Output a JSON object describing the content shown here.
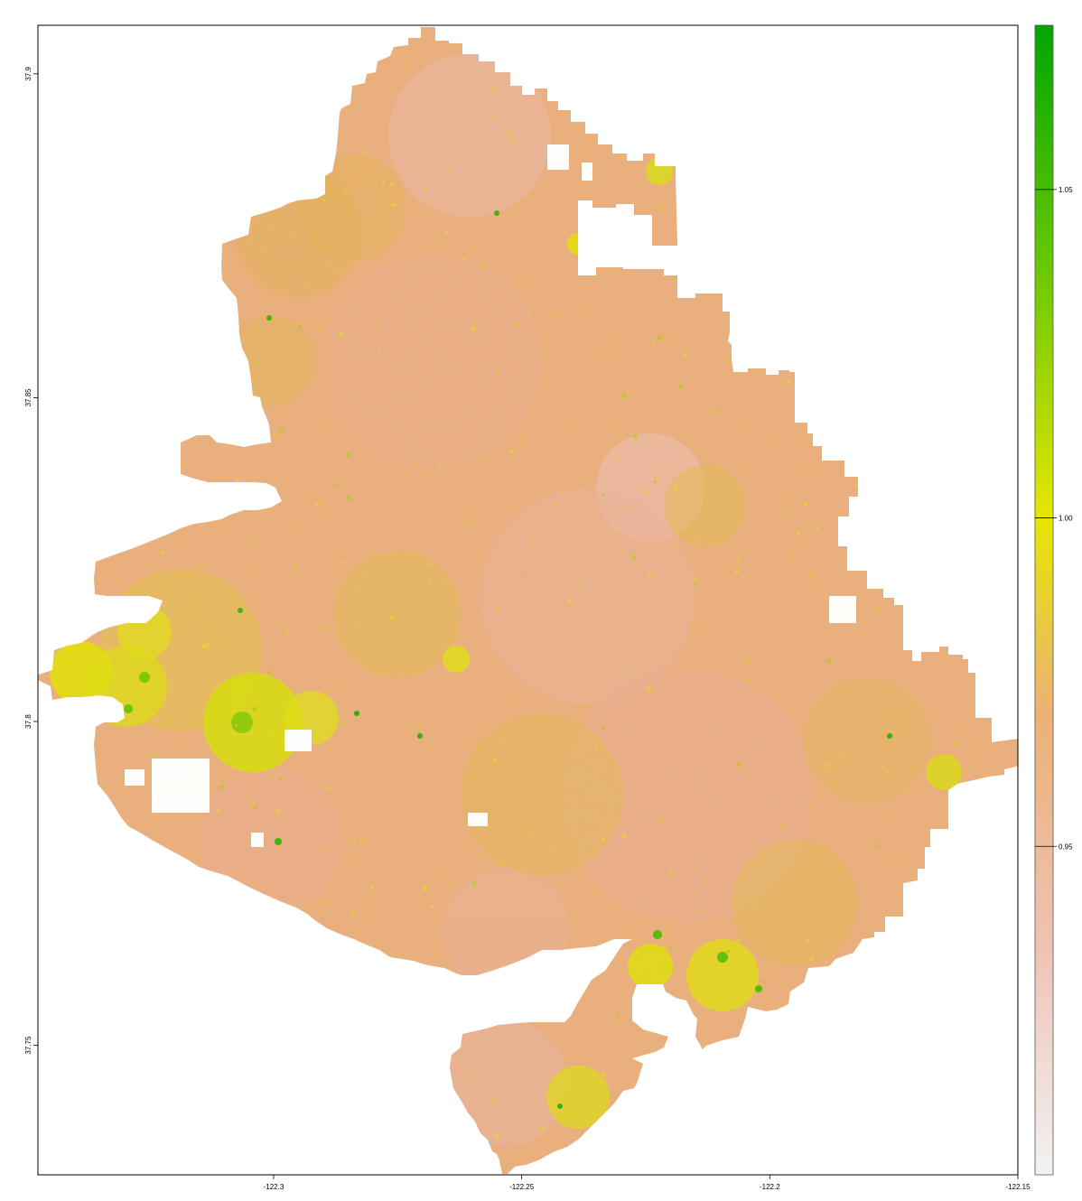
{
  "map": {
    "x_ticks": [
      "-122.3",
      "-122.25",
      "-122.2",
      "-122.15"
    ],
    "y_ticks": [
      "37.9",
      "37.85",
      "37.8",
      "37.75"
    ],
    "x_range": [
      -122.3475,
      -122.15
    ],
    "y_range": [
      37.73,
      37.9075
    ]
  },
  "legend": {
    "ticks": [
      "1.05",
      "1.00",
      "0.95"
    ],
    "tick_values": [
      1.05,
      1.0,
      0.95
    ],
    "range": [
      0.9,
      1.075
    ],
    "colors": [
      "#f2f2f2",
      "#efc2b3",
      "#ecb176",
      "#e6e600",
      "#63c600",
      "#00a600"
    ],
    "color_stops": [
      0.9,
      0.935,
      0.97,
      1.0,
      1.04,
      1.075
    ]
  }
}
